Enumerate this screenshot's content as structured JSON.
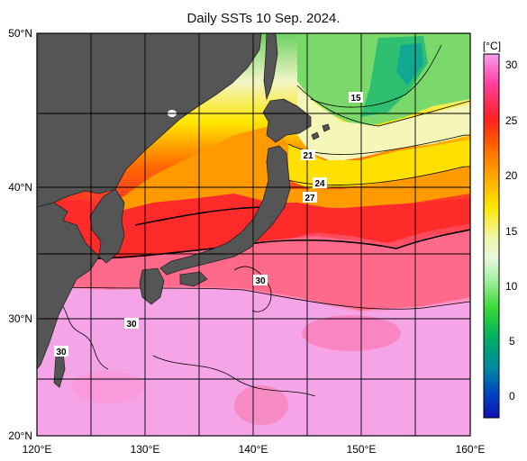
{
  "title": "Daily SSTs 10 Sep. 2024.",
  "lat_labels": [
    "50°N",
    "40°N",
    "30°N",
    "20°N"
  ],
  "lon_labels": [
    "120°E",
    "130°E",
    "140°E",
    "150°E",
    "160°E"
  ],
  "colorbar": {
    "unit": "[°C]",
    "ticks": [
      "30",
      "25",
      "20",
      "15",
      "10",
      "5",
      "0"
    ],
    "stops": [
      "#f6a0f0",
      "#ff40a0",
      "#ff2020",
      "#ff6a00",
      "#ffaa00",
      "#ffe600",
      "#f0f6a0",
      "#e8f8e0",
      "#a6f0a0",
      "#38d838",
      "#00b060",
      "#008aa0",
      "#0048c0",
      "#1010b0"
    ]
  },
  "contour_labels": [
    "15",
    "21",
    "24",
    "27",
    "30",
    "30",
    "30"
  ],
  "colors": {
    "land": "#555555",
    "warm_pool": "#f3a0e6",
    "kuroshio": "#ff4a5c",
    "subtropic": "#ff8c8c"
  }
}
